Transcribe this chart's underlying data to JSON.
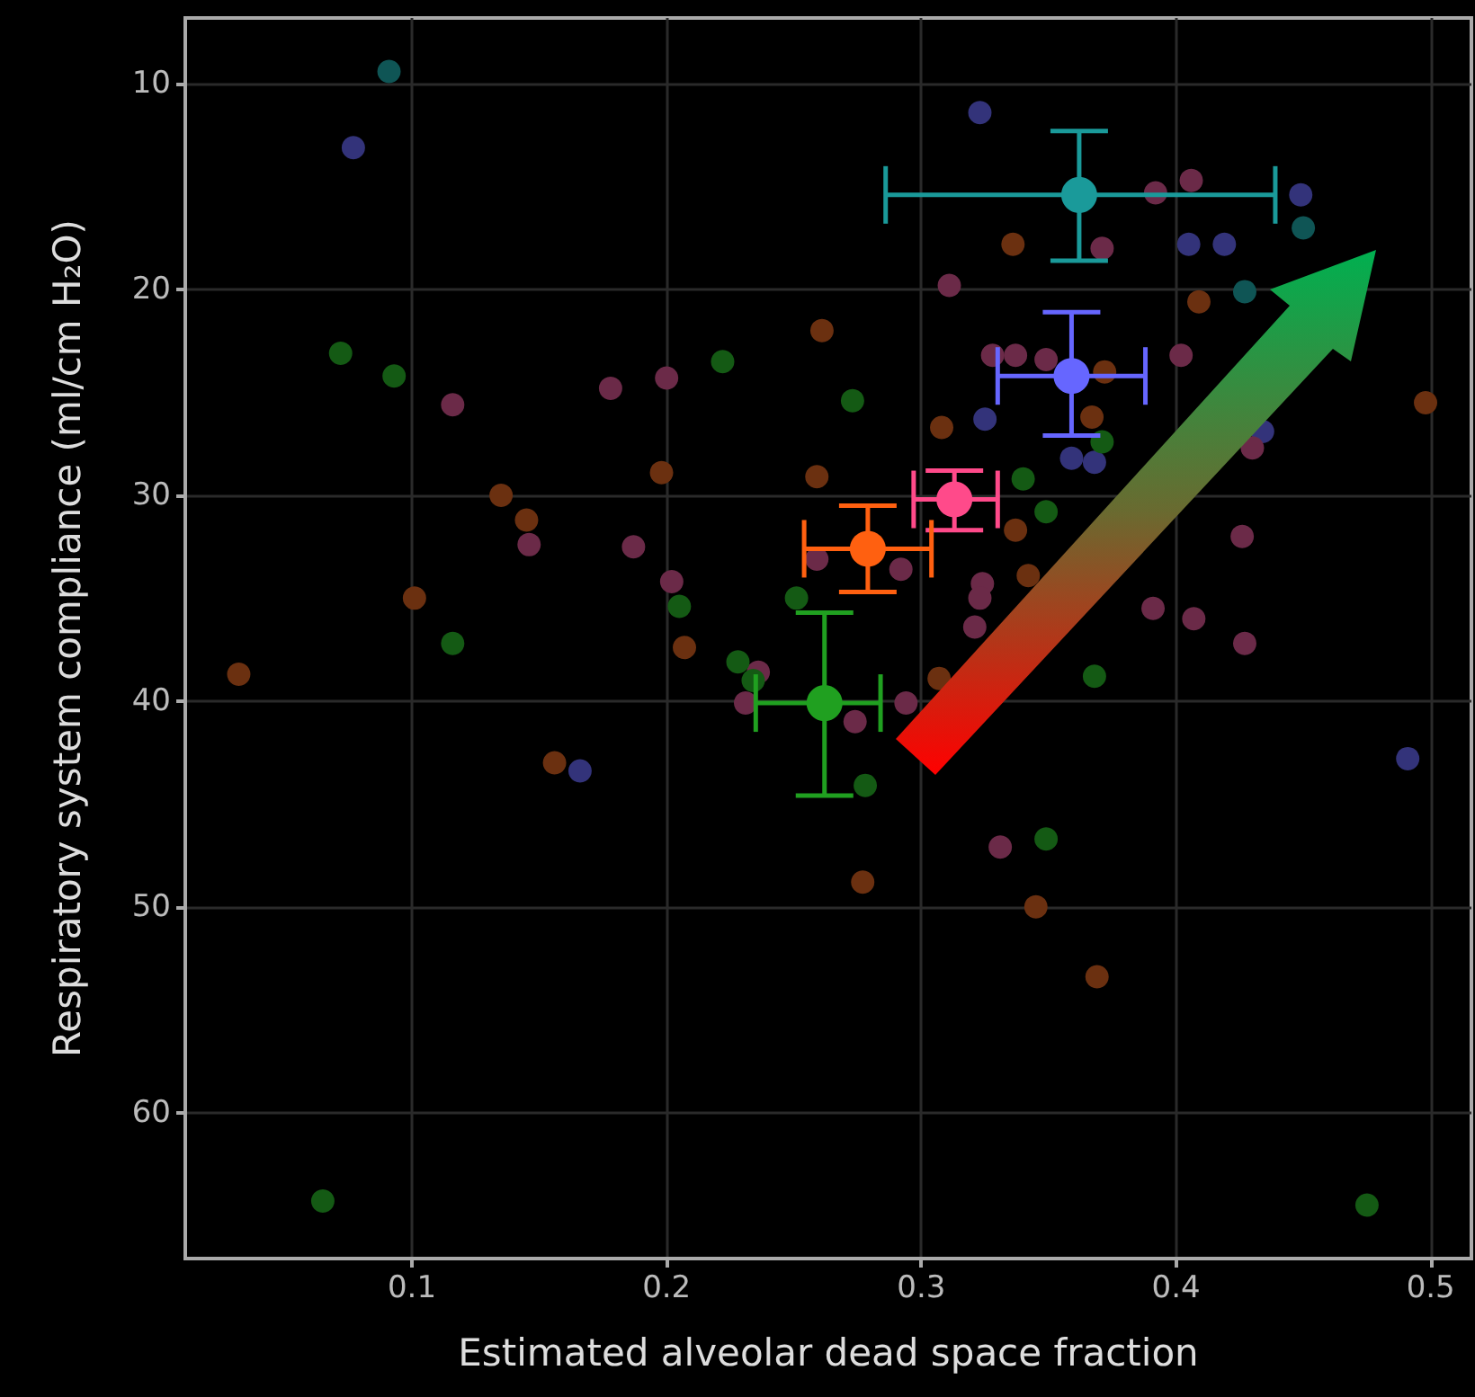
{
  "chart_data": {
    "type": "scatter",
    "xlabel": "Estimated alveolar dead space fraction",
    "ylabel": "Respiratory system compliance (ml/cm H₂O)",
    "xlim": [
      0.011,
      0.516
    ],
    "ylim": [
      67.1,
      6.8
    ],
    "xticks": [
      0.1,
      0.2,
      0.3,
      0.4,
      0.5
    ],
    "yticks": [
      10,
      20,
      30,
      40,
      50,
      60
    ],
    "grid": true,
    "legend": false,
    "marker": "circle",
    "series": [
      {
        "color": "#0f5555",
        "x": [
          0.091,
          0.45,
          0.427
        ],
        "values": [
          9.4,
          17.0,
          20.1
        ]
      },
      {
        "color": "#33337a",
        "x": [
          0.077,
          0.323,
          0.449,
          0.405,
          0.419,
          0.325,
          0.359,
          0.368,
          0.434,
          0.166,
          0.491
        ],
        "values": [
          13.1,
          11.4,
          15.4,
          17.8,
          17.8,
          26.3,
          28.2,
          28.4,
          26.9,
          43.4,
          42.8
        ]
      },
      {
        "color": "#6b2a48",
        "x": [
          0.116,
          0.178,
          0.2,
          0.146,
          0.187,
          0.202,
          0.259,
          0.406,
          0.392,
          0.371,
          0.311,
          0.328,
          0.337,
          0.349,
          0.402,
          0.43,
          0.419,
          0.292,
          0.324,
          0.323,
          0.321,
          0.391,
          0.407,
          0.426,
          0.427,
          0.294,
          0.274,
          0.331,
          0.236,
          0.231
        ],
        "values": [
          25.6,
          24.8,
          24.3,
          32.4,
          32.5,
          34.2,
          33.1,
          14.7,
          15.3,
          18.0,
          19.8,
          23.2,
          23.2,
          23.4,
          23.2,
          27.7,
          null,
          33.6,
          34.3,
          35.0,
          36.4,
          35.5,
          36.0,
          32.0,
          37.2,
          40.1,
          41.0,
          47.1,
          38.6,
          40.1
        ]
      },
      {
        "color": "#6b3010",
        "x": [
          0.261,
          0.135,
          0.145,
          0.198,
          0.259,
          0.101,
          0.207,
          0.336,
          0.409,
          0.308,
          0.372,
          0.367,
          0.337,
          0.342,
          0.498,
          0.307,
          0.277,
          0.345,
          0.369,
          0.032,
          0.156
        ],
        "values": [
          22.0,
          30.0,
          31.2,
          28.9,
          29.1,
          35.0,
          37.4,
          17.8,
          20.6,
          26.7,
          24.0,
          26.2,
          31.7,
          33.9,
          25.5,
          38.9,
          48.8,
          50.0,
          53.4,
          38.7,
          43.0
        ]
      },
      {
        "color": "#145a14",
        "x": [
          0.072,
          0.093,
          0.222,
          0.251,
          0.205,
          0.116,
          0.273,
          0.371,
          0.34,
          0.349,
          0.228,
          0.234,
          0.065,
          0.278,
          0.349,
          0.368,
          0.475
        ],
        "values": [
          23.1,
          24.2,
          23.5,
          35.0,
          35.4,
          37.2,
          25.4,
          27.4,
          29.2,
          30.8,
          38.1,
          39.0,
          64.3,
          44.1,
          46.7,
          38.8,
          64.5
        ]
      },
      {
        "color": "#1a9a9a",
        "x": [
          0.362
        ],
        "values": [
          15.4
        ],
        "errors": [
          [
            12.3,
            18.6
          ]
        ],
        "xerrors": [
          [
            0.286,
            0.439
          ]
        ]
      },
      {
        "color": "#6666ff",
        "x": [
          0.359
        ],
        "values": [
          24.2
        ],
        "errors": [
          [
            21.1,
            27.1
          ]
        ],
        "xerrors": [
          [
            0.33,
            0.388
          ]
        ]
      },
      {
        "color": "#ff4a8a",
        "x": [
          0.313
        ],
        "values": [
          30.2
        ],
        "errors": [
          [
            28.8,
            31.7
          ]
        ],
        "xerrors": [
          [
            0.297,
            0.33
          ]
        ]
      },
      {
        "color": "#ff6010",
        "x": [
          0.279
        ],
        "values": [
          32.6
        ],
        "errors": [
          [
            30.5,
            34.7
          ]
        ],
        "xerrors": [
          [
            0.254,
            0.304
          ]
        ]
      },
      {
        "color": "#20a020",
        "x": [
          0.262
        ],
        "values": [
          40.1
        ],
        "errors": [
          [
            35.7,
            44.6
          ]
        ],
        "xerrors": [
          [
            0.235,
            0.284
          ]
        ]
      }
    ]
  }
}
